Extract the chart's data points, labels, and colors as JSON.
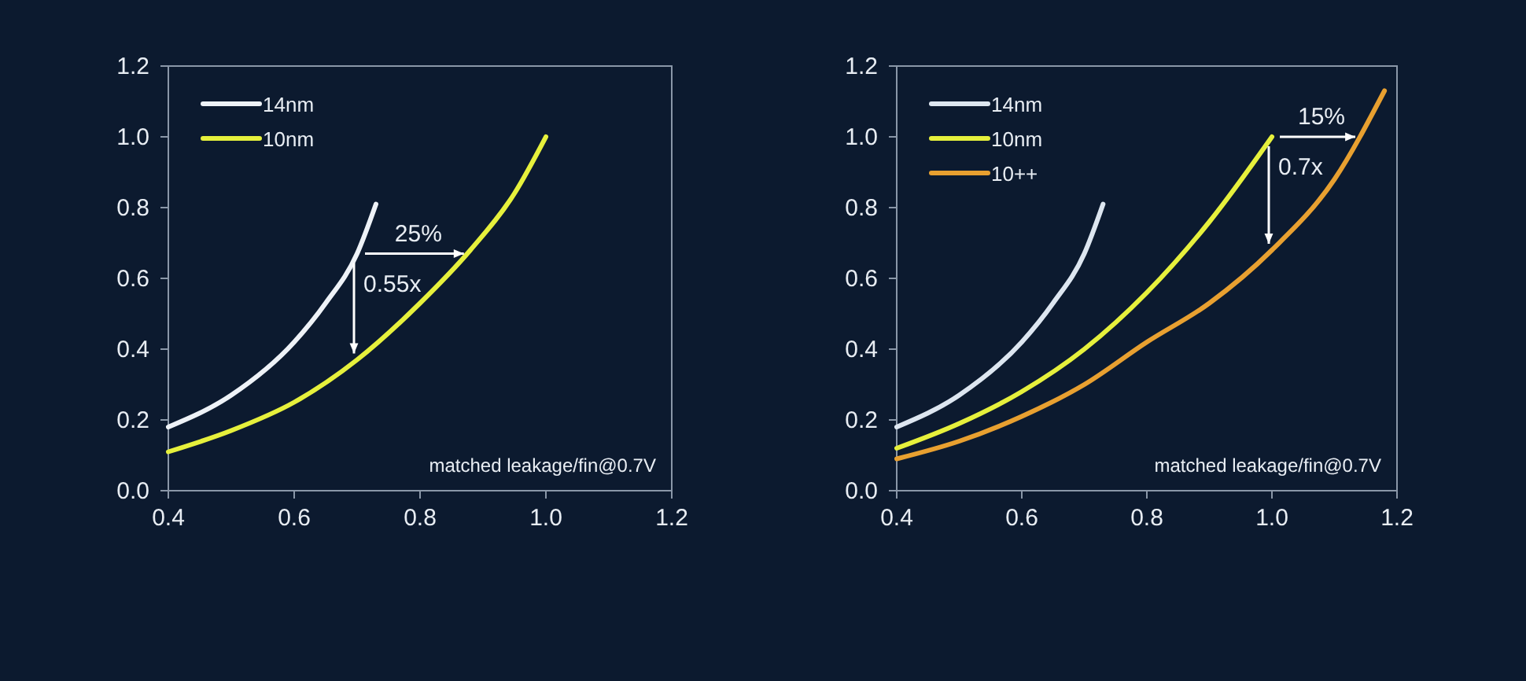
{
  "chart_data": [
    {
      "type": "line",
      "xlim": [
        0.4,
        1.2
      ],
      "ylim": [
        0,
        1.2
      ],
      "xticks": [
        {
          "value": 0.4,
          "label": "0.4"
        },
        {
          "value": 0.6,
          "label": "0.6"
        },
        {
          "value": 0.8,
          "label": "0.8"
        },
        {
          "value": 1.0,
          "label": "1.0"
        },
        {
          "value": 1.2,
          "label": "1.2"
        }
      ],
      "yticks": [
        {
          "value": 0,
          "label": "0.0"
        },
        {
          "value": 0.2,
          "label": "0.2"
        },
        {
          "value": 0.4,
          "label": "0.4"
        },
        {
          "value": 0.6,
          "label": "0.6"
        },
        {
          "value": 0.8,
          "label": "0.8"
        },
        {
          "value": 1.0,
          "label": "1.0"
        },
        {
          "value": 1.2,
          "label": "1.2"
        }
      ],
      "legend": "top left",
      "grid": false,
      "marker": "none",
      "series": [
        {
          "name": "14nm",
          "color": "#eef2f7",
          "x": [
            0.4,
            0.5,
            0.6,
            0.65,
            0.7,
            0.73
          ],
          "values": [
            0.18,
            0.27,
            0.42,
            0.53,
            0.67,
            0.81
          ]
        },
        {
          "name": "10nm",
          "color": "#e6f03c",
          "x": [
            0.4,
            0.5,
            0.6,
            0.7,
            0.8,
            0.88,
            0.95,
            1.0
          ],
          "values": [
            0.11,
            0.17,
            0.25,
            0.37,
            0.53,
            0.68,
            0.84,
            1.0
          ]
        }
      ],
      "annotations": [
        "25%",
        {
          "text": "0.55x",
          "x": 0.7,
          "y": 0.37
        },
        "matched leakage/fin@0.7V"
      ]
    },
    {
      "type": "line",
      "xlim": [
        0.4,
        1.2
      ],
      "ylim": [
        0,
        1.2
      ],
      "xticks": [
        {
          "value": 0.4,
          "label": "0.4"
        },
        {
          "value": 0.6,
          "label": "0.6"
        },
        {
          "value": 0.8,
          "label": "0.8"
        },
        {
          "value": 1.0,
          "label": "1.0"
        },
        {
          "value": 1.2,
          "label": "1.2"
        }
      ],
      "yticks": [
        {
          "value": 0,
          "label": "0.0"
        },
        {
          "value": 0.2,
          "label": "0.2"
        },
        {
          "value": 0.4,
          "label": "0.4"
        },
        {
          "value": 0.6,
          "label": "0.6"
        },
        {
          "value": 0.8,
          "label": "0.8"
        },
        {
          "value": 1.0,
          "label": "1.0"
        },
        {
          "value": 1.2,
          "label": "1.2"
        }
      ],
      "legend": "top left",
      "grid": false,
      "marker": "none",
      "series": [
        {
          "name": "14nm",
          "color": "#dde6f0",
          "x": [
            0.4,
            0.5,
            0.6,
            0.65,
            0.7,
            0.73
          ],
          "values": [
            0.18,
            0.27,
            0.42,
            0.53,
            0.67,
            0.81
          ]
        },
        {
          "name": "10nm",
          "color": "#e6f03c",
          "x": [
            0.4,
            0.5,
            0.6,
            0.7,
            0.8,
            0.9,
            1.0
          ],
          "values": [
            0.12,
            0.19,
            0.28,
            0.4,
            0.56,
            0.76,
            1.0
          ]
        },
        {
          "name": "10++",
          "color": "#e8a030",
          "x": [
            0.4,
            0.5,
            0.6,
            0.7,
            0.8,
            0.9,
            1.0,
            1.1,
            1.18
          ],
          "values": [
            0.09,
            0.14,
            0.21,
            0.3,
            0.42,
            0.53,
            0.68,
            0.88,
            1.13
          ]
        }
      ],
      "annotations": [
        "15%",
        {
          "text": "0.7x",
          "x": 1.0,
          "y": 0.68
        },
        "matched leakage/fin@0.7V"
      ]
    }
  ]
}
